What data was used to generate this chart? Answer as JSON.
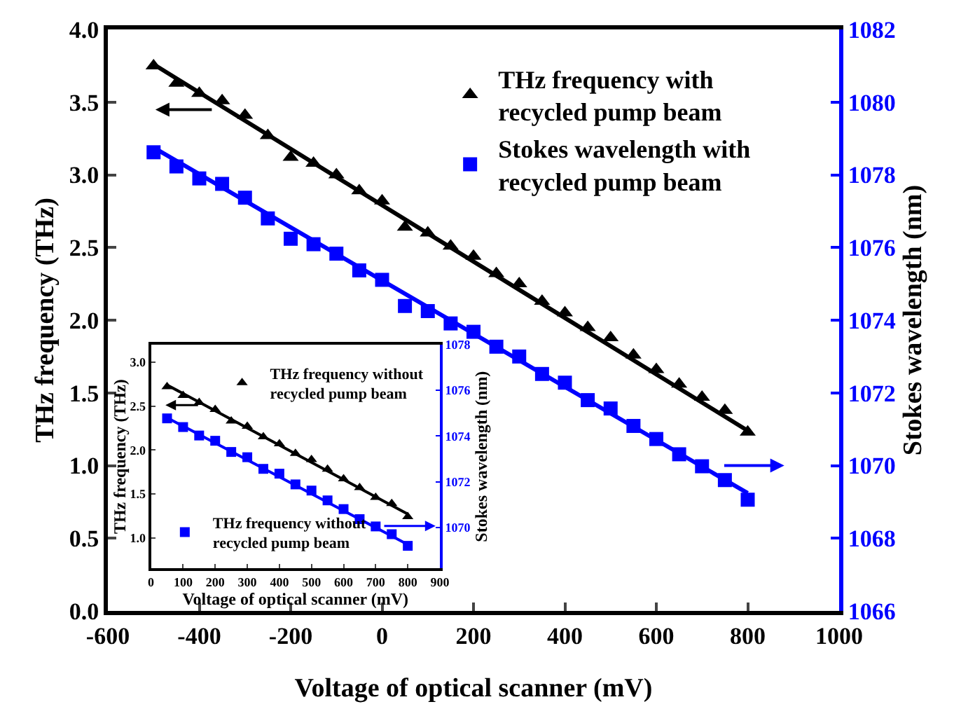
{
  "chart_data": [
    {
      "type": "scatter",
      "xlabel": "Voltage of optical scanner (mV)",
      "ylabel": "THz frequency (THz)",
      "y2label": "Stokes wavelength (nm)",
      "x": [
        -500,
        -450,
        -400,
        -350,
        -300,
        -250,
        -200,
        -150,
        -100,
        -50,
        0,
        50,
        100,
        150,
        200,
        250,
        300,
        350,
        400,
        450,
        500,
        550,
        600,
        650,
        700,
        750,
        800
      ],
      "series": [
        {
          "name": "THz frequency with recycled pump beam",
          "color": "#000000",
          "marker": "triangle",
          "values": [
            3.75,
            3.63,
            3.56,
            3.51,
            3.41,
            3.27,
            3.12,
            3.08,
            3.0,
            2.89,
            2.82,
            2.64,
            2.6,
            2.51,
            2.44,
            2.32,
            2.25,
            2.13,
            2.05,
            1.95,
            1.88,
            1.76,
            1.66,
            1.56,
            1.47,
            1.38,
            1.23
          ]
        },
        {
          "name": "Stokes wavelength with recycled pump beam",
          "color": "#0000ff",
          "marker": "square",
          "axis": "y2",
          "values": [
            1078.62,
            1078.23,
            1077.9,
            1077.75,
            1077.37,
            1076.8,
            1076.24,
            1076.09,
            1075.83,
            1075.37,
            1075.11,
            1074.39,
            1074.25,
            1073.91,
            1073.68,
            1073.27,
            1073.0,
            1072.52,
            1072.28,
            1071.8,
            1071.57,
            1071.09,
            1070.73,
            1070.31,
            1069.98,
            1069.6,
            1069.06
          ]
        },
        {
          "type": "line",
          "color": "#000000",
          "x": [
            -500,
            800
          ],
          "values": [
            3.76,
            1.24
          ]
        },
        {
          "type": "line",
          "color": "#0000ff",
          "axis": "y2",
          "x": [
            -500,
            800
          ],
          "values": [
            1078.75,
            1069.24
          ]
        }
      ],
      "xlim": [
        -600,
        1000
      ],
      "xticks": [
        -600,
        -400,
        -200,
        0,
        200,
        400,
        600,
        800,
        1000
      ],
      "ylim": [
        0,
        4.0
      ],
      "yticks": [
        {
          "value": 0,
          "label": "0.0"
        },
        {
          "value": 0.5,
          "label": "0.5"
        },
        {
          "value": 1,
          "label": "1.0"
        },
        {
          "value": 1.5,
          "label": "1.5"
        },
        {
          "value": 2,
          "label": "2.0"
        },
        {
          "value": 2.5,
          "label": "2.5"
        },
        {
          "value": 3,
          "label": "3.0"
        },
        {
          "value": 3.5,
          "label": "3.5"
        },
        {
          "value": 4,
          "label": "4.0"
        }
      ],
      "y2lim": [
        1066,
        1082
      ],
      "y2ticks": [
        1066,
        1068,
        1070,
        1072,
        1074,
        1076,
        1078,
        1080,
        1082
      ],
      "legend": "top right"
    },
    {
      "type": "scatter",
      "xlabel": "Voltage of optical scanner (mV)",
      "ylabel": "THz frequency (THz)",
      "y2label": "Stokes wavelength (nm)",
      "x": [
        50,
        100,
        150,
        200,
        250,
        300,
        350,
        400,
        450,
        500,
        550,
        600,
        650,
        700,
        750,
        800
      ],
      "series": [
        {
          "name": "THz frequency without recycled pump beam",
          "color": "#000000",
          "marker": "triangle",
          "values": [
            2.72,
            2.62,
            2.54,
            2.46,
            2.33,
            2.27,
            2.15,
            2.07,
            1.96,
            1.89,
            1.78,
            1.67,
            1.57,
            1.46,
            1.39,
            1.24
          ]
        },
        {
          "name": "THz frequency without recycled pump beam",
          "color": "#0000ff",
          "marker": "square",
          "axis": "y2",
          "values": [
            1074.77,
            1074.39,
            1074.02,
            1073.79,
            1073.3,
            1073.07,
            1072.56,
            1072.35,
            1071.88,
            1071.61,
            1071.18,
            1070.8,
            1070.36,
            1070.04,
            1069.7,
            1069.19
          ]
        },
        {
          "type": "line",
          "color": "#000000",
          "x": [
            50,
            800
          ],
          "values": [
            2.74,
            1.27
          ]
        },
        {
          "type": "line",
          "color": "#0000ff",
          "axis": "y2",
          "x": [
            50,
            800
          ],
          "values": [
            1074.8,
            1069.25
          ]
        }
      ],
      "xlim": [
        0,
        900
      ],
      "xticks": [
        0,
        100,
        200,
        300,
        400,
        500,
        600,
        700,
        800,
        900
      ],
      "ylim": [
        0.65,
        3.2
      ],
      "yticks": [
        {
          "value": 1,
          "label": "1.0"
        },
        {
          "value": 1.5,
          "label": "1.5"
        },
        {
          "value": 2,
          "label": "2.0"
        },
        {
          "value": 2.5,
          "label": "2.5"
        },
        {
          "value": 3,
          "label": "3.0"
        }
      ],
      "y2lim": [
        1068.2,
        1078
      ],
      "y2ticks": [
        1070,
        1072,
        1074,
        1076,
        1078
      ],
      "legend": "right"
    }
  ]
}
